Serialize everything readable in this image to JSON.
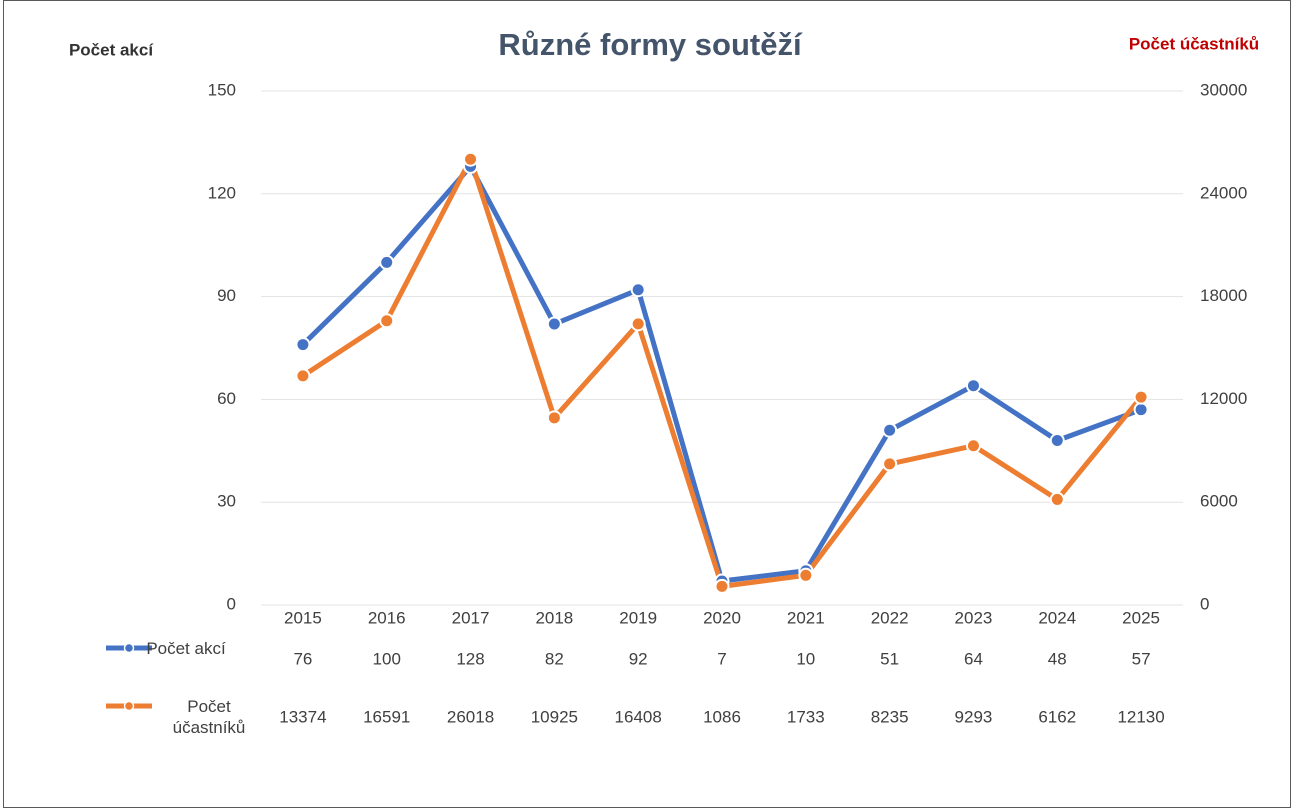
{
  "chart_data": {
    "type": "line",
    "title": "Různé formy soutěží",
    "y_label": "Počet akcí",
    "y2_label": "Počet účastníků",
    "categories": [
      "2015",
      "2016",
      "2017",
      "2018",
      "2019",
      "2020",
      "2021",
      "2022",
      "2023",
      "2024",
      "2025"
    ],
    "series": [
      {
        "name": "Počet akcí",
        "color": "#4472c4",
        "values": [
          76,
          100,
          128,
          82,
          92,
          7,
          10,
          51,
          64,
          48,
          57
        ]
      },
      {
        "name": "Počet účastníků",
        "color": "#ed7d31",
        "axis": "y2",
        "values": [
          13374,
          16591,
          26018,
          10925,
          16408,
          1086,
          1733,
          8235,
          9293,
          6162,
          12130
        ]
      }
    ],
    "ylim": [
      0,
      150
    ],
    "yticks": [
      0,
      30,
      60,
      90,
      120,
      150
    ],
    "y2lim": [
      0,
      30000
    ],
    "y2ticks": [
      0,
      6000,
      12000,
      18000,
      24000,
      30000
    ],
    "grid": true
  }
}
